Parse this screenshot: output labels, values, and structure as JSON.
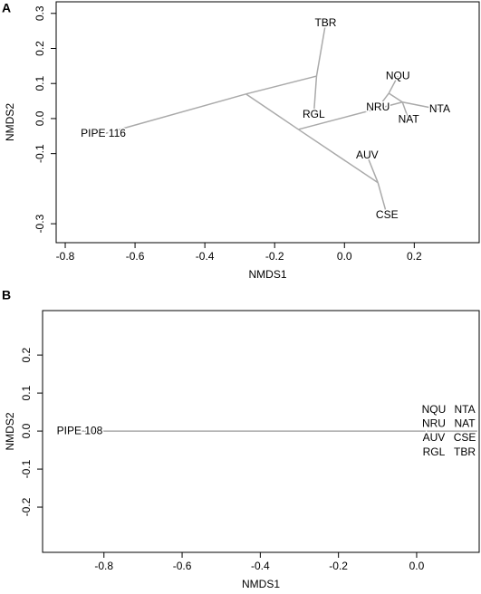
{
  "chart_data": [
    {
      "type": "tree",
      "panel_label": "A",
      "x_label": "NMDS1",
      "y_label": "NMDS2",
      "line_color": "#aaaaaa",
      "xlim": [
        -0.826,
        0.386
      ],
      "ylim": [
        -0.354,
        0.333
      ],
      "xticks": [
        -0.8,
        -0.6,
        -0.4,
        -0.2,
        {
          "value": 0,
          "label": "0.0"
        },
        0.2
      ],
      "yticks": [
        0.3,
        0.2,
        0.1,
        {
          "value": 0,
          "label": "0.0"
        },
        -0.1,
        -0.3
      ],
      "nodes": [
        {
          "label": "PIPE 116",
          "x": -0.691,
          "y": -0.044
        },
        {
          "label": null,
          "x": -0.282,
          "y": 0.07
        },
        {
          "label": null,
          "x": -0.08,
          "y": 0.121
        },
        {
          "label": "TBR",
          "x": -0.054,
          "y": 0.271
        },
        {
          "label": "RGL",
          "x": -0.088,
          "y": 0.01
        },
        {
          "label": null,
          "x": -0.132,
          "y": -0.031
        },
        {
          "label": null,
          "x": 0.096,
          "y": -0.183
        },
        {
          "label": "AUV",
          "x": 0.065,
          "y": -0.106
        },
        {
          "label": "CSE",
          "x": 0.122,
          "y": -0.276
        },
        {
          "label": null,
          "x": 0.166,
          "y": 0.047
        },
        {
          "label": null,
          "x": 0.127,
          "y": 0.072
        },
        {
          "label": "NQU",
          "x": 0.153,
          "y": 0.121
        },
        {
          "label": "NTA",
          "x": 0.273,
          "y": 0.026
        },
        {
          "label": "NAT",
          "x": 0.184,
          "y": -0.003
        },
        {
          "label": "NRU",
          "x": 0.096,
          "y": 0.031
        }
      ],
      "edges": [
        [
          0,
          1
        ],
        [
          1,
          2
        ],
        [
          2,
          3
        ],
        [
          2,
          4
        ],
        [
          1,
          5
        ],
        [
          5,
          6
        ],
        [
          6,
          7
        ],
        [
          6,
          8
        ],
        [
          5,
          9
        ],
        [
          9,
          10
        ],
        [
          10,
          11
        ],
        [
          10,
          14
        ],
        [
          9,
          12
        ],
        [
          9,
          13
        ]
      ]
    },
    {
      "type": "tree",
      "panel_label": "B",
      "x_label": "NMDS1",
      "y_label": "NMDS2",
      "line_color": "#aaaaaa",
      "xlim": [
        -0.957,
        0.16
      ],
      "ylim": [
        -0.319,
        0.317
      ],
      "xticks": [
        -0.8,
        -0.6,
        -0.4,
        -0.2,
        {
          "value": 0,
          "label": "0.0"
        }
      ],
      "yticks": [
        0.2,
        0.1,
        {
          "value": 0,
          "label": "0.0"
        },
        -0.1,
        -0.2
      ],
      "nodes": [
        {
          "label": "PIPE 108",
          "x": -0.862,
          "y": 0
        },
        {
          "label": null,
          "x": 0.155,
          "y": 0
        },
        {
          "label": "NQU",
          "x": 0.044,
          "y": 0.055
        },
        {
          "label": "NTA",
          "x": 0.123,
          "y": 0.055
        },
        {
          "label": "NRU",
          "x": 0.044,
          "y": 0.019
        },
        {
          "label": "NAT",
          "x": 0.123,
          "y": 0.019
        },
        {
          "label": "AUV",
          "x": 0.044,
          "y": -0.019
        },
        {
          "label": "CSE",
          "x": 0.123,
          "y": -0.019
        },
        {
          "label": "RGL",
          "x": 0.044,
          "y": -0.057
        },
        {
          "label": "TBR",
          "x": 0.123,
          "y": -0.057
        }
      ],
      "edges": [
        [
          0,
          1
        ]
      ]
    }
  ]
}
